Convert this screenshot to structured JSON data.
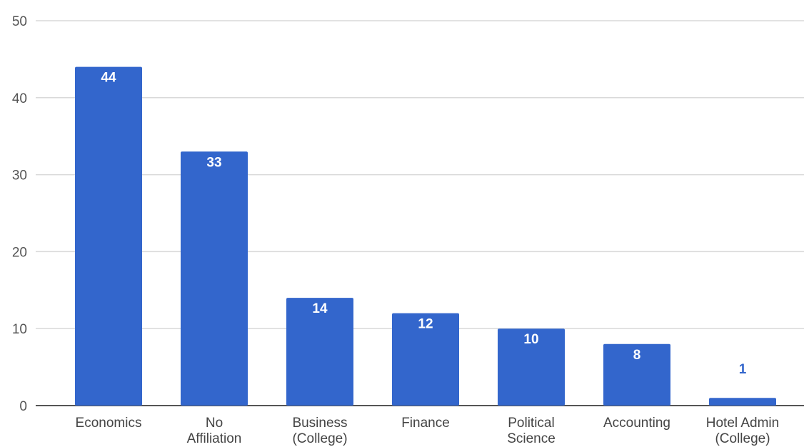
{
  "chart_data": {
    "type": "bar",
    "categories": [
      [
        "Economics"
      ],
      [
        "No",
        "Affiliation"
      ],
      [
        "Business",
        "(College)"
      ],
      [
        "Finance"
      ],
      [
        "Political",
        "Science"
      ],
      [
        "Accounting"
      ],
      [
        "Hotel Admin",
        "(College)"
      ]
    ],
    "values": [
      44,
      33,
      14,
      12,
      10,
      8,
      1
    ],
    "data_labels": [
      "44",
      "33",
      "14",
      "12",
      "10",
      "8",
      "1"
    ],
    "ylim": [
      0,
      50
    ],
    "yticks": [
      "0",
      "10",
      "20",
      "30",
      "40",
      "50"
    ],
    "title": "",
    "xlabel": "",
    "ylabel": "",
    "grid": true,
    "legend": "none",
    "colors": {
      "bar": "#3366cc",
      "label_inside": "#ffffff",
      "label_outside": "#3366cc"
    }
  }
}
